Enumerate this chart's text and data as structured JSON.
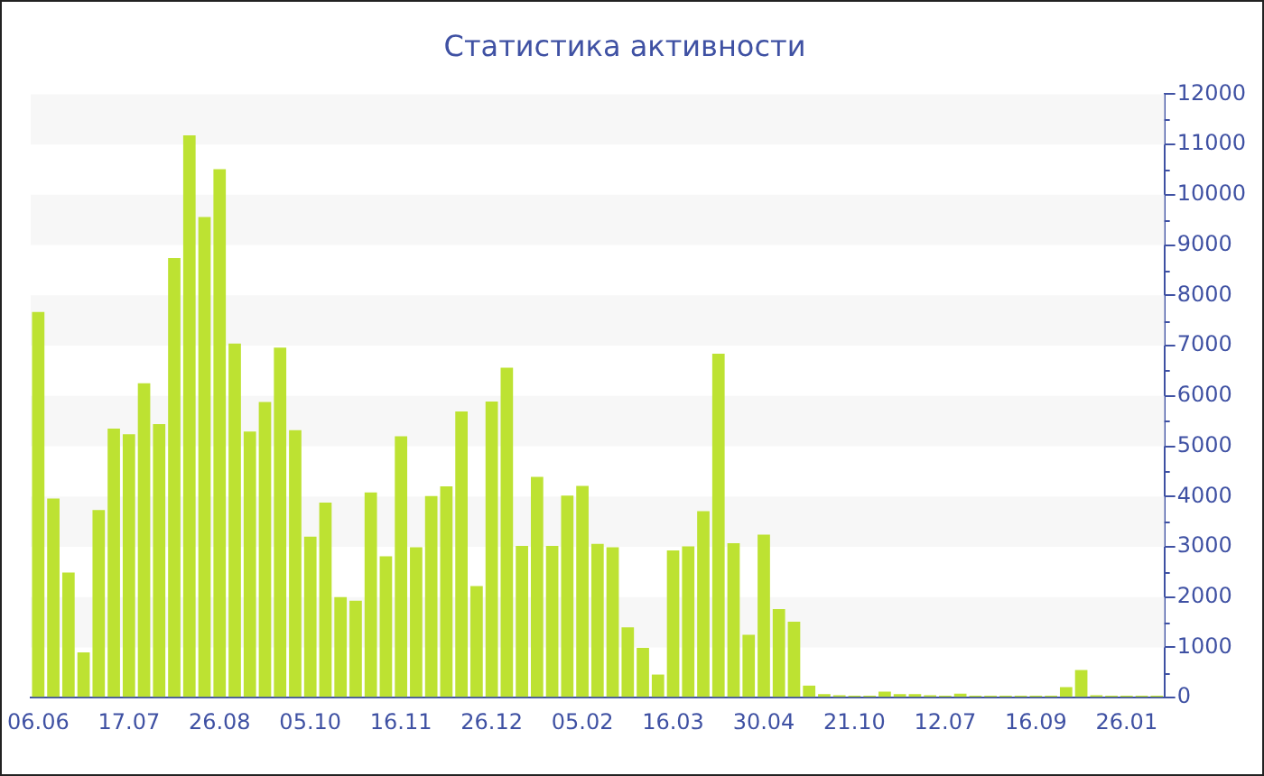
{
  "chart_data": {
    "type": "bar",
    "title": "Статистика активности",
    "categories": [
      "06.06",
      null,
      null,
      null,
      null,
      null,
      "17.07",
      null,
      null,
      null,
      null,
      null,
      "26.08",
      null,
      null,
      null,
      null,
      null,
      "05.10",
      null,
      null,
      null,
      null,
      null,
      "16.11",
      null,
      null,
      null,
      null,
      null,
      "26.12",
      null,
      null,
      null,
      null,
      null,
      "05.02",
      null,
      null,
      null,
      null,
      null,
      "16.03",
      null,
      null,
      null,
      null,
      null,
      "30.04",
      null,
      null,
      null,
      null,
      null,
      "21.10",
      null,
      null,
      null,
      null,
      null,
      "12.07",
      null,
      null,
      null,
      null,
      null,
      "16.09",
      null,
      null,
      null,
      null,
      null,
      "26.01",
      null,
      null
    ],
    "values": [
      7670,
      3960,
      2490,
      900,
      3730,
      5350,
      5240,
      6250,
      5440,
      8740,
      11180,
      9560,
      10510,
      7040,
      5290,
      5880,
      6960,
      5320,
      3200,
      3880,
      2000,
      1930,
      4080,
      2810,
      5200,
      2990,
      4010,
      4200,
      5690,
      2220,
      5890,
      6560,
      3020,
      4390,
      3020,
      4020,
      4210,
      3060,
      2990,
      1400,
      990,
      460,
      2930,
      3010,
      3710,
      6840,
      3070,
      1250,
      3240,
      1760,
      1510,
      240,
      70,
      50,
      40,
      40,
      120,
      70,
      70,
      50,
      40,
      80,
      40,
      40,
      40,
      40,
      40,
      40,
      210,
      550,
      50,
      40,
      40,
      40,
      40
    ],
    "color": "#bde232",
    "ylim": [
      0,
      12000
    ],
    "yticks": [
      0,
      1000,
      2000,
      3000,
      4000,
      5000,
      6000,
      7000,
      8000,
      9000,
      10000,
      11000,
      12000
    ],
    "bands": [
      {
        "axis": "y",
        "from": 1000,
        "to": 2000,
        "color": "#f7f7f7"
      },
      {
        "axis": "y",
        "from": 3000,
        "to": 4000,
        "color": "#f7f7f7"
      },
      {
        "axis": "y",
        "from": 5000,
        "to": 6000,
        "color": "#f7f7f7"
      },
      {
        "axis": "y",
        "from": 7000,
        "to": 8000,
        "color": "#f7f7f7"
      },
      {
        "axis": "y",
        "from": 9000,
        "to": 10000,
        "color": "#f7f7f7"
      },
      {
        "axis": "y",
        "from": 11000,
        "to": 12000,
        "color": "#f7f7f7"
      }
    ],
    "grid": false,
    "legend": false
  }
}
